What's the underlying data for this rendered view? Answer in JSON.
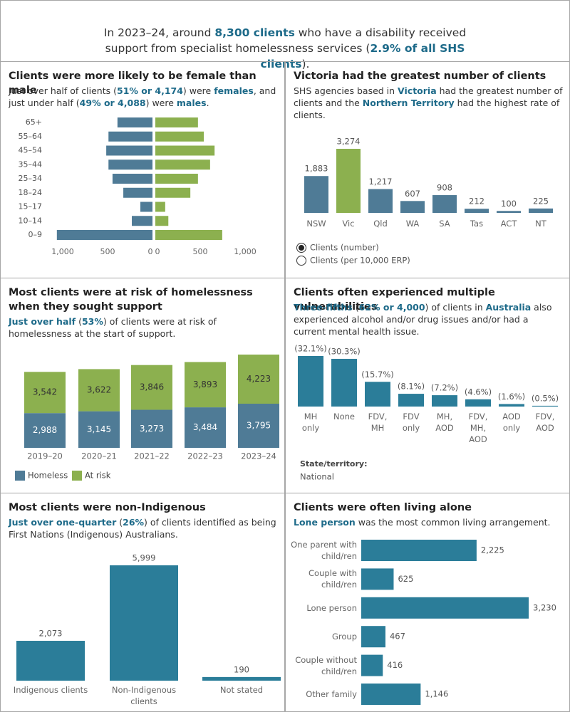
{
  "header": {
    "segments": [
      {
        "text": "In 2023–24, around "
      },
      {
        "text": "8,300 clients",
        "emphasis": true
      },
      {
        "text": " who have a disability received support from specialist homelessness services ("
      },
      {
        "text": "2.9% of all SHS clients",
        "emphasis": true
      },
      {
        "text": ")."
      }
    ]
  },
  "chart_data": [
    {
      "type": "pyramid",
      "title": "Clients were more likely to be female than male",
      "subtitle": [
        {
          "text": "Just over half of clients ("
        },
        {
          "text": "51% or 4,174",
          "emphasis": true
        },
        {
          "text": ") were "
        },
        {
          "text": "females",
          "emphasis": true
        },
        {
          "text": ", and just under half ("
        },
        {
          "text": "49% or 4,088",
          "emphasis": true
        },
        {
          "text": ") were "
        },
        {
          "text": "males",
          "emphasis": true
        },
        {
          "text": "."
        }
      ],
      "categories": [
        "65+",
        "55–64",
        "45–54",
        "35–44",
        "25–34",
        "18–24",
        "15–17",
        "10–14",
        "0–9"
      ],
      "series": [
        {
          "side": "left",
          "color": "#4f7b96",
          "values": [
            390,
            490,
            515,
            490,
            445,
            325,
            135,
            230,
            1065
          ]
        },
        {
          "side": "right",
          "color": "#8cb04f",
          "values": [
            475,
            540,
            660,
            610,
            475,
            390,
            110,
            145,
            745
          ]
        }
      ],
      "xlim": [
        0,
        1000
      ],
      "xticks_left": [
        {
          "value": 1000,
          "label": "1,000"
        },
        500,
        0
      ],
      "xticks_right": [
        0,
        500,
        {
          "value": 1000,
          "label": "1,000"
        }
      ]
    },
    {
      "type": "bar",
      "title": "Victoria had the greatest number of clients",
      "subtitle": [
        {
          "text": "SHS agencies based in "
        },
        {
          "text": "Victoria",
          "emphasis": true
        },
        {
          "text": " had the greatest number of clients and the "
        },
        {
          "text": "Northern Territory",
          "emphasis": true
        },
        {
          "text": " had the highest rate of clients."
        }
      ],
      "categories": [
        "NSW",
        "Vic",
        "Qld",
        "WA",
        "SA",
        "Tas",
        "ACT",
        "NT"
      ],
      "values": [
        1883,
        3274,
        1217,
        607,
        908,
        212,
        100,
        225
      ],
      "value_labels": [
        "1,883",
        "3,274",
        "1,217",
        "607",
        "908",
        "212",
        "100",
        "225"
      ],
      "colors": [
        "#4f7b96",
        "#8cb04f",
        "#4f7b96",
        "#4f7b96",
        "#4f7b96",
        "#4f7b96",
        "#4f7b96",
        "#4f7b96"
      ],
      "options": [
        "Clients (number)",
        "Clients (per 10,000 ERP)"
      ],
      "selected": 0
    },
    {
      "type": "stacked_bar",
      "title": "Most clients were at risk of homelessness when they sought support",
      "subtitle": [
        {
          "text": "Just over half",
          "emphasis": true
        },
        {
          "text": " ("
        },
        {
          "text": "53%",
          "emphasis": true
        },
        {
          "text": ") of clients were at risk of homelessness at the start of support."
        }
      ],
      "categories": [
        "2019–20",
        "2020–21",
        "2021–22",
        "2022–23",
        "2023–24"
      ],
      "series": [
        {
          "name": "Homeless",
          "color": "#4f7b96",
          "label_color": "#ffffff",
          "values": [
            2988,
            3145,
            3273,
            3484,
            3795
          ],
          "value_labels": [
            "2,988",
            "3,145",
            "3,273",
            "3,484",
            "3,795"
          ]
        },
        {
          "name": "At risk",
          "color": "#8cb04f",
          "label_color": "#333333",
          "values": [
            3542,
            3622,
            3846,
            3893,
            4223
          ],
          "value_labels": [
            "3,542",
            "3,622",
            "3,846",
            "3,893",
            "4,223"
          ]
        }
      ],
      "legend": "bottom-left"
    },
    {
      "type": "bar",
      "title": "Clients often experienced multiple vulnerabilities",
      "subtitle": [
        {
          "text": "Three-fifths",
          "emphasis": true
        },
        {
          "text": " ("
        },
        {
          "text": "62% or 4,000",
          "emphasis": true
        },
        {
          "text": ") of clients in "
        },
        {
          "text": "Australia",
          "emphasis": true
        },
        {
          "text": " also experienced alcohol and/or drug issues and/or had a current mental health issue."
        }
      ],
      "categories": [
        "MH only",
        "None",
        "FDV, MH",
        "FDV only",
        "MH, AOD",
        "FDV, MH, AOD",
        "AOD only",
        "FDV, AOD"
      ],
      "values": [
        32.1,
        30.3,
        15.7,
        8.1,
        7.2,
        4.6,
        1.6,
        0.5
      ],
      "value_labels": [
        "(32.1%)",
        "(30.3%)",
        "(15.7%)",
        "(8.1%)",
        "(7.2%)",
        "(4.6%)",
        "(1.6%)",
        "(0.5%)"
      ],
      "color": "#2b7d99",
      "filter_label": "State/territory:",
      "filter_value": "National"
    },
    {
      "type": "bar",
      "title": "Most clients were non-Indigenous",
      "subtitle": [
        {
          "text": "Just over one-quarter",
          "emphasis": true
        },
        {
          "text": " ("
        },
        {
          "text": "26%",
          "emphasis": true
        },
        {
          "text": ") of clients identified as being First Nations (Indigenous) Australians."
        }
      ],
      "categories": [
        "Indigenous clients",
        "Non-Indigenous clients",
        "Not stated"
      ],
      "values": [
        2073,
        5999,
        190
      ],
      "value_labels": [
        "2,073",
        "5,999",
        "190"
      ],
      "color": "#2b7d99"
    },
    {
      "type": "hbar",
      "title": "Clients were often living alone",
      "subtitle": [
        {
          "text": "Lone person",
          "emphasis": true
        },
        {
          "text": " was the most common living arrangement."
        }
      ],
      "categories": [
        "One parent with child/ren",
        "Couple with child/ren",
        "Lone person",
        "Group",
        "Couple without child/ren",
        "Other family"
      ],
      "values": [
        2225,
        625,
        3230,
        467,
        416,
        1146
      ],
      "value_labels": [
        "2,225",
        "625",
        "3,230",
        "467",
        "416",
        "1,146"
      ],
      "color": "#2b7d99"
    }
  ]
}
